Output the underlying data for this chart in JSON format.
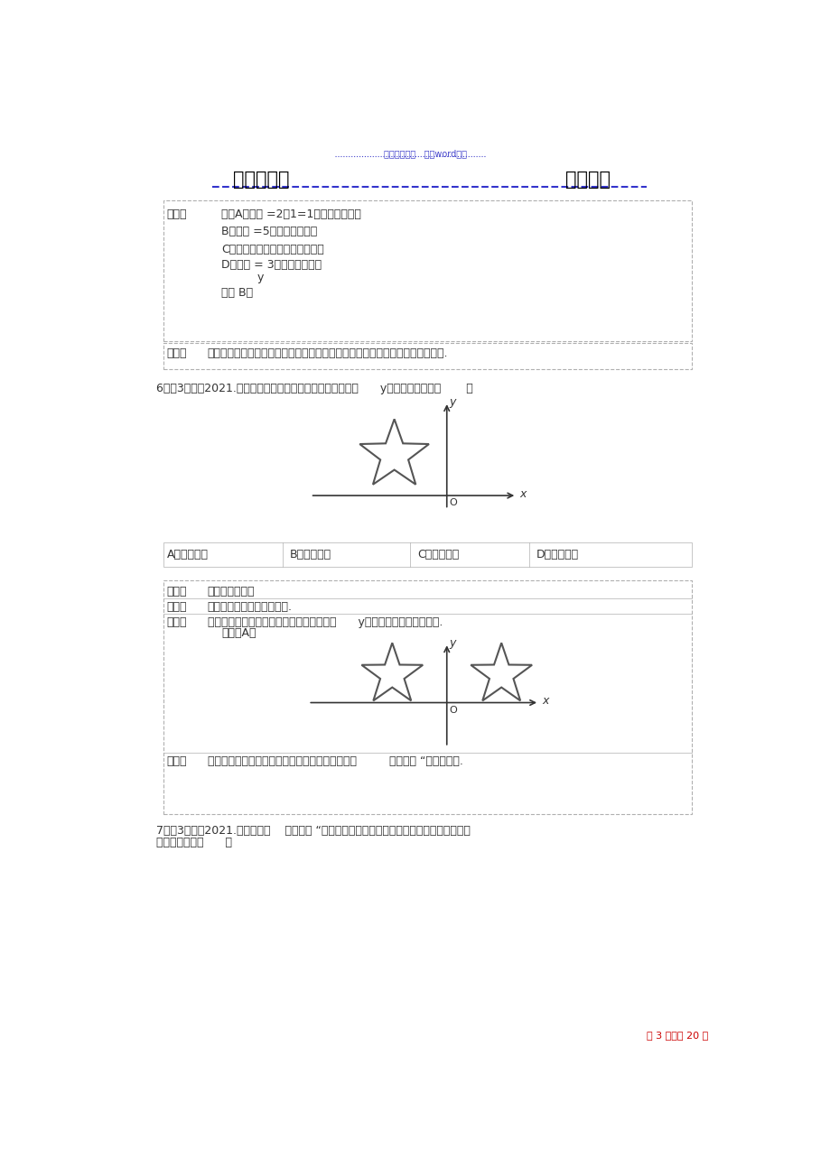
{
  "bg_color": "#ffffff",
  "header_top_text": "名师出题总结   精品word资料",
  "header_top_color": "#4444cc",
  "header_dotted_line_color": "#4444cc",
  "title_left": "学习好资料",
  "title_right": "欢迎下载",
  "title_color": "#000000",
  "title_underline_color": "#3333cc",
  "box1_content": [
    "解：A、原式 =2－1=1；应选项错误；",
    "B、原式 =5，应选项正确；",
    "C、原式不能合并，应选项错误；",
    "D、原式 = 3，应选项错误．",
    "          y",
    "应选 B．"
  ],
  "box2_content": "此题考查了分式的加减法，以及实数的运算，娴熏把握运算法就是解此题的关键.",
  "q6_text": "6．（3分）（2021.柳州）如图，直角坐标系中的五角星关于      y轴对称的图形在（       ）",
  "q6_options": [
    "A．第一象限",
    "B．其次象限",
    "C．第三象限",
    "D．第四象限"
  ],
  "kd_text": "轴对称的性质；",
  "fx_text": "依据轴对称的性质作出挑选.",
  "jd_text": "解：如下列图，直角坐标系中的五角星关于      y轴对称的图形在第一象限.",
  "jd2_text": "应选：A．",
  "pd_text": "此题考查了轴对称的性质．此题难度不大，采纳了         数形结合 “的数学思想.",
  "q7_text": "7．（3分）（2021.柳州）学校    靖洁校内 “环境爱惜理想者的年龄分布如图，那么这些理想者",
  "q7_text2": "年龄的众数是（      ）",
  "footer_text": "第 3 页，共 20 页",
  "footer_color": "#cc0000",
  "box_border_color": "#b0b0b0",
  "text_color": "#333333",
  "label_color": "#333333"
}
